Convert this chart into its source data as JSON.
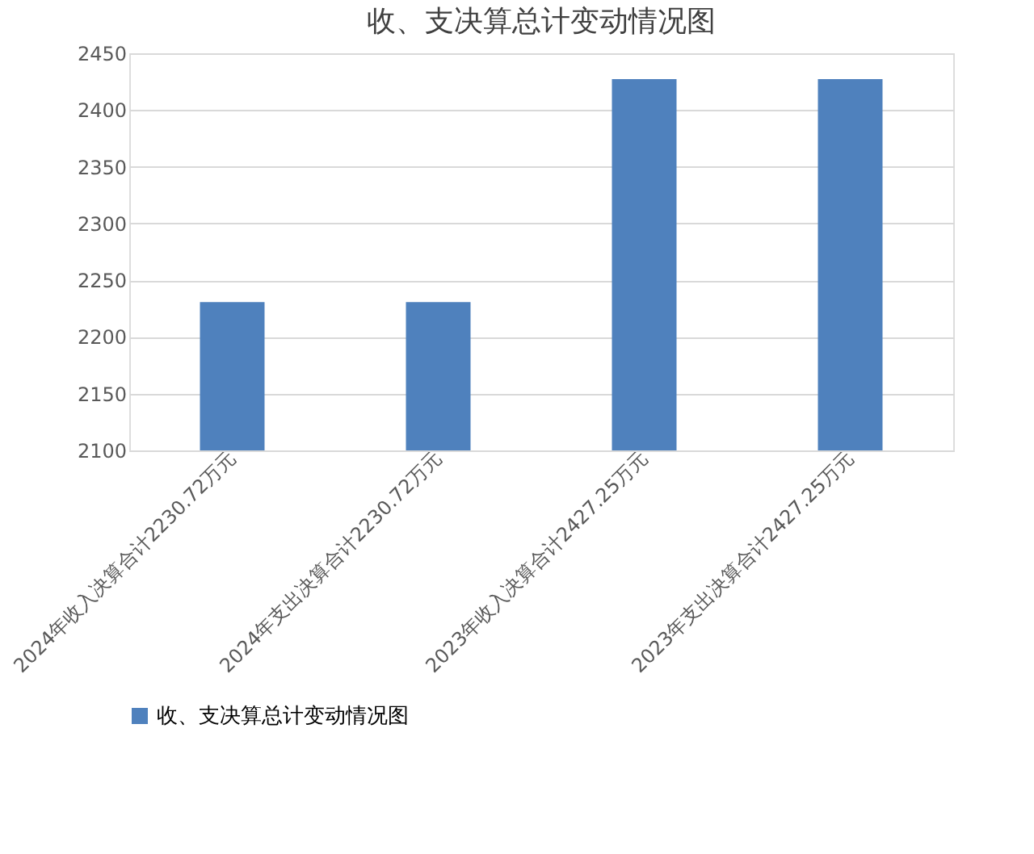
{
  "chart_data": {
    "type": "bar",
    "title": "收、支决算总计变动情况图",
    "categories": [
      "2024年收入决算合计2230.72万元",
      "2024年支出决算合计2230.72万元",
      "2023年收入决算合计2427.25万元",
      "2023年支出决算合计2427.25万元"
    ],
    "series": [
      {
        "name": "收、支决算总计变动情况图",
        "color": "#4f81bd",
        "values": [
          2230.72,
          2230.72,
          2427.25,
          2427.25
        ]
      }
    ],
    "ylim": [
      2100,
      2450
    ],
    "yticks": [
      2100,
      2150,
      2200,
      2250,
      2300,
      2350,
      2400,
      2450
    ],
    "grid": "y",
    "legend": "bottom"
  }
}
